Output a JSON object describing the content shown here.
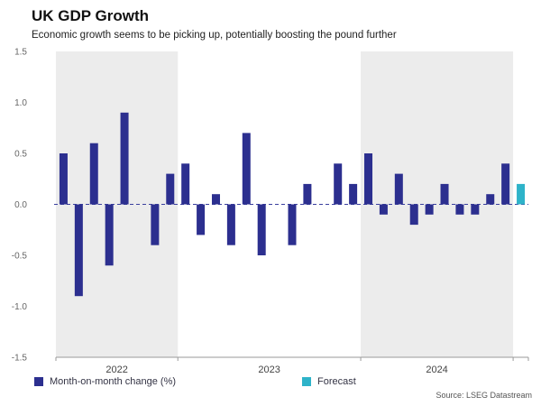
{
  "page": {
    "title": "UK GDP Growth",
    "subtitle": "Economic growth seems to be picking up, potentially boosting the pound further",
    "source": "Source: LSEG Datastream"
  },
  "legend": {
    "items": [
      {
        "label": "Month-on-month change (%)",
        "color": "#2c2f8f"
      },
      {
        "label": "Forecast",
        "color": "#2eb3c9"
      }
    ]
  },
  "chart_data": {
    "type": "bar",
    "title": "UK GDP Growth",
    "subtitle": "Economic growth seems to be picking up, potentially boosting the pound further",
    "xlabel": "",
    "ylabel": "Month-on-month change (%)",
    "ylim": [
      -1.5,
      1.5
    ],
    "yticks": [
      1.5,
      1.0,
      0.5,
      0.0,
      -0.5,
      -1.0,
      -1.5
    ],
    "grid": false,
    "legend_position": "bottom",
    "zero_line": {
      "style": "dashed",
      "color": "#3a3f9e"
    },
    "values": [
      0.5,
      -0.9,
      0.6,
      -0.6,
      0.9,
      0.0,
      -0.4,
      0.3,
      0.4,
      -0.3,
      0.1,
      -0.4,
      0.7,
      -0.5,
      0.0,
      -0.4,
      0.2,
      0.0,
      0.4,
      0.2,
      0.5,
      -0.1,
      0.3,
      -0.2,
      -0.1,
      0.2,
      -0.1,
      -0.1,
      0.1,
      0.4,
      0.2
    ],
    "forecast_indices": [
      30
    ],
    "year_groups": [
      {
        "label": "2022",
        "count": 8,
        "shaded": true
      },
      {
        "label": "2023",
        "count": 12,
        "shaded": false
      },
      {
        "label": "2024",
        "count": 10,
        "shaded": true
      },
      {
        "label": "",
        "count": 1,
        "shaded": false
      }
    ],
    "colors": {
      "actual": "#2c2f8f",
      "forecast": "#2eb3c9",
      "panel": "#ececec",
      "axis": "#9a9a9a",
      "tick_text": "#666666",
      "year_text": "#444444"
    }
  }
}
